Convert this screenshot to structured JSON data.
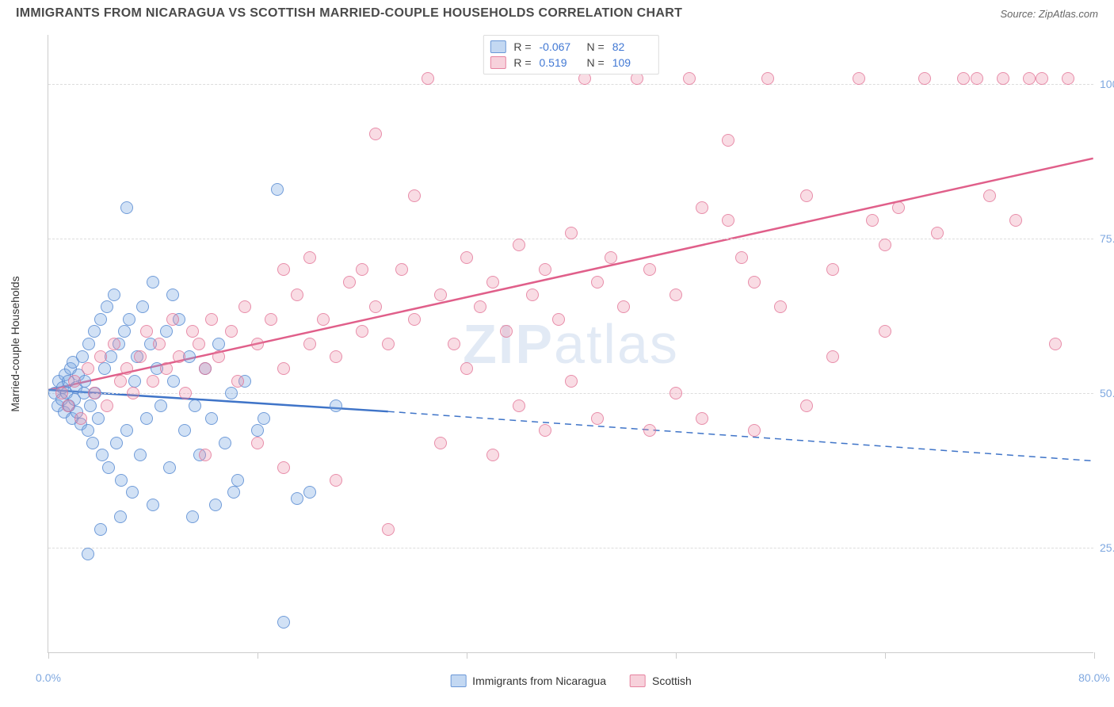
{
  "title": "IMMIGRANTS FROM NICARAGUA VS SCOTTISH MARRIED-COUPLE HOUSEHOLDS CORRELATION CHART",
  "source_prefix": "Source: ",
  "source_name": "ZipAtlas.com",
  "watermark_bold": "ZIP",
  "watermark_rest": "atlas",
  "chart": {
    "type": "scatter",
    "xlim": [
      0,
      80
    ],
    "ylim": [
      8,
      108
    ],
    "xticks": [
      0,
      16,
      32,
      48,
      64,
      80
    ],
    "xtick_labels": [
      "0.0%",
      "",
      "",
      "",
      "",
      "80.0%"
    ],
    "yticks": [
      25,
      50,
      75,
      100
    ],
    "ytick_labels": [
      "25.0%",
      "50.0%",
      "75.0%",
      "100.0%"
    ],
    "ylabel": "Married-couple Households",
    "background_color": "#ffffff",
    "grid_color": "#dddddd",
    "axis_color": "#cccccc",
    "marker_radius": 8,
    "series": [
      {
        "name": "Immigrants from Nicaragua",
        "color_fill": "rgba(123,169,226,0.35)",
        "color_stroke": "rgba(90,140,210,0.8)",
        "R": "-0.067",
        "N": "82",
        "trend": {
          "x1": 0,
          "y1": 50.5,
          "x2": 26,
          "y2": 47,
          "x2_dash": 80,
          "y2_dash": 39,
          "color": "#3f74c8",
          "width": 2.5
        },
        "points": [
          [
            0.5,
            50
          ],
          [
            0.7,
            48
          ],
          [
            0.8,
            52
          ],
          [
            1,
            49
          ],
          [
            1.1,
            51
          ],
          [
            1.2,
            47
          ],
          [
            1.3,
            53
          ],
          [
            1.4,
            50
          ],
          [
            1.5,
            52
          ],
          [
            1.6,
            48
          ],
          [
            1.7,
            54
          ],
          [
            1.8,
            46
          ],
          [
            1.9,
            55
          ],
          [
            2,
            49
          ],
          [
            2.1,
            51
          ],
          [
            2.2,
            47
          ],
          [
            2.3,
            53
          ],
          [
            2.5,
            45
          ],
          [
            2.6,
            56
          ],
          [
            2.7,
            50
          ],
          [
            2.8,
            52
          ],
          [
            3,
            44
          ],
          [
            3.1,
            58
          ],
          [
            3.2,
            48
          ],
          [
            3.4,
            42
          ],
          [
            3.5,
            60
          ],
          [
            3.6,
            50
          ],
          [
            3.8,
            46
          ],
          [
            4,
            62
          ],
          [
            4.1,
            40
          ],
          [
            4.3,
            54
          ],
          [
            4.5,
            64
          ],
          [
            4.6,
            38
          ],
          [
            4.8,
            56
          ],
          [
            5,
            66
          ],
          [
            5.2,
            42
          ],
          [
            5.4,
            58
          ],
          [
            5.6,
            36
          ],
          [
            5.8,
            60
          ],
          [
            6,
            44
          ],
          [
            6.2,
            62
          ],
          [
            6.4,
            34
          ],
          [
            6.6,
            52
          ],
          [
            6.8,
            56
          ],
          [
            7,
            40
          ],
          [
            7.2,
            64
          ],
          [
            7.5,
            46
          ],
          [
            7.8,
            58
          ],
          [
            8,
            32
          ],
          [
            8.3,
            54
          ],
          [
            8.6,
            48
          ],
          [
            9,
            60
          ],
          [
            9.3,
            38
          ],
          [
            9.6,
            52
          ],
          [
            10,
            62
          ],
          [
            10.4,
            44
          ],
          [
            10.8,
            56
          ],
          [
            11.2,
            48
          ],
          [
            11.6,
            40
          ],
          [
            12,
            54
          ],
          [
            12.5,
            46
          ],
          [
            13,
            58
          ],
          [
            13.5,
            42
          ],
          [
            14,
            50
          ],
          [
            14.5,
            36
          ],
          [
            15,
            52
          ],
          [
            16,
            44
          ],
          [
            4,
            28
          ],
          [
            5.5,
            30
          ],
          [
            3,
            24
          ],
          [
            17.5,
            83
          ],
          [
            6,
            80
          ],
          [
            8,
            68
          ],
          [
            9.5,
            66
          ],
          [
            11,
            30
          ],
          [
            12.8,
            32
          ],
          [
            14.2,
            34
          ],
          [
            16.5,
            46
          ],
          [
            18,
            13
          ],
          [
            19,
            33
          ],
          [
            20,
            34
          ],
          [
            22,
            48
          ]
        ]
      },
      {
        "name": "Scottish",
        "color_fill": "rgba(235,140,165,0.3)",
        "color_stroke": "rgba(225,110,145,0.7)",
        "R": "0.519",
        "N": "109",
        "trend": {
          "x1": 0,
          "y1": 50.5,
          "x2": 80,
          "y2": 88,
          "color": "#e05f8a",
          "width": 2.5
        },
        "points": [
          [
            1,
            50
          ],
          [
            1.5,
            48
          ],
          [
            2,
            52
          ],
          [
            2.5,
            46
          ],
          [
            3,
            54
          ],
          [
            3.5,
            50
          ],
          [
            4,
            56
          ],
          [
            4.5,
            48
          ],
          [
            5,
            58
          ],
          [
            5.5,
            52
          ],
          [
            6,
            54
          ],
          [
            6.5,
            50
          ],
          [
            7,
            56
          ],
          [
            7.5,
            60
          ],
          [
            8,
            52
          ],
          [
            8.5,
            58
          ],
          [
            9,
            54
          ],
          [
            9.5,
            62
          ],
          [
            10,
            56
          ],
          [
            10.5,
            50
          ],
          [
            11,
            60
          ],
          [
            11.5,
            58
          ],
          [
            12,
            54
          ],
          [
            12.5,
            62
          ],
          [
            13,
            56
          ],
          [
            14,
            60
          ],
          [
            14.5,
            52
          ],
          [
            15,
            64
          ],
          [
            16,
            58
          ],
          [
            17,
            62
          ],
          [
            18,
            54
          ],
          [
            19,
            66
          ],
          [
            20,
            58
          ],
          [
            21,
            62
          ],
          [
            22,
            56
          ],
          [
            23,
            68
          ],
          [
            24,
            60
          ],
          [
            25,
            64
          ],
          [
            26,
            58
          ],
          [
            27,
            70
          ],
          [
            28,
            62
          ],
          [
            29,
            101
          ],
          [
            30,
            66
          ],
          [
            31,
            58
          ],
          [
            32,
            72
          ],
          [
            33,
            64
          ],
          [
            34,
            68
          ],
          [
            35,
            60
          ],
          [
            36,
            74
          ],
          [
            37,
            66
          ],
          [
            38,
            70
          ],
          [
            39,
            62
          ],
          [
            40,
            76
          ],
          [
            41,
            101
          ],
          [
            42,
            68
          ],
          [
            43,
            72
          ],
          [
            44,
            64
          ],
          [
            45,
            101
          ],
          [
            46,
            70
          ],
          [
            48,
            66
          ],
          [
            49,
            101
          ],
          [
            50,
            80
          ],
          [
            52,
            78
          ],
          [
            53,
            72
          ],
          [
            54,
            68
          ],
          [
            55,
            101
          ],
          [
            56,
            64
          ],
          [
            58,
            82
          ],
          [
            60,
            70
          ],
          [
            62,
            101
          ],
          [
            63,
            78
          ],
          [
            64,
            74
          ],
          [
            65,
            80
          ],
          [
            67,
            101
          ],
          [
            68,
            76
          ],
          [
            70,
            101
          ],
          [
            71,
            101
          ],
          [
            72,
            82
          ],
          [
            73,
            101
          ],
          [
            74,
            78
          ],
          [
            75,
            101
          ],
          [
            76,
            101
          ],
          [
            77,
            58
          ],
          [
            78,
            101
          ],
          [
            25,
            92
          ],
          [
            28,
            82
          ],
          [
            16,
            42
          ],
          [
            18,
            38
          ],
          [
            12,
            40
          ],
          [
            22,
            36
          ],
          [
            26,
            28
          ],
          [
            30,
            42
          ],
          [
            34,
            40
          ],
          [
            36,
            48
          ],
          [
            38,
            44
          ],
          [
            42,
            46
          ],
          [
            46,
            44
          ],
          [
            50,
            46
          ],
          [
            52,
            91
          ],
          [
            54,
            44
          ],
          [
            58,
            48
          ],
          [
            18,
            70
          ],
          [
            20,
            72
          ],
          [
            24,
            70
          ],
          [
            32,
            54
          ],
          [
            40,
            52
          ],
          [
            48,
            50
          ],
          [
            60,
            56
          ],
          [
            64,
            60
          ]
        ]
      }
    ]
  },
  "legend_bottom": [
    {
      "color": "blue",
      "label": "Immigrants from Nicaragua"
    },
    {
      "color": "pink",
      "label": "Scottish"
    }
  ]
}
